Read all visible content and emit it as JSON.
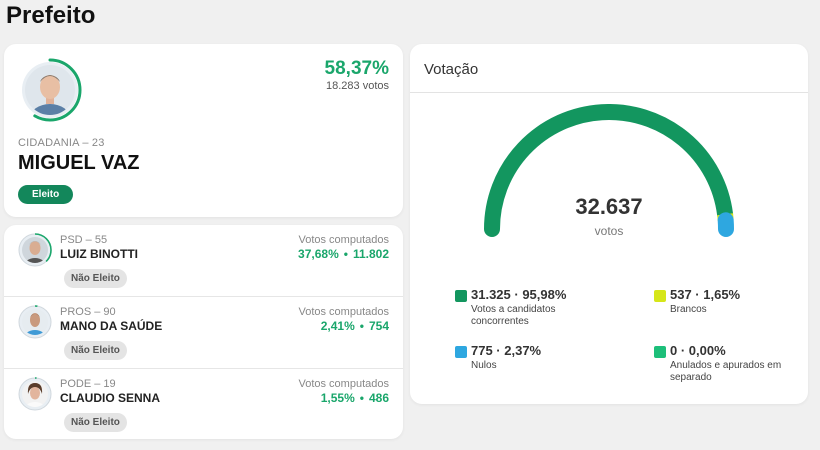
{
  "page_title": "Prefeito",
  "winner": {
    "party": "CIDADANIA – 23",
    "name": "MIGUEL VAZ",
    "percent": "58,37%",
    "votes": "18.283 votos",
    "status": "Eleito",
    "share": 0.5837,
    "ring_color": "#1aa66b"
  },
  "others": [
    {
      "party": "PSD – 55",
      "name": "LUIZ BINOTTI",
      "votes_label": "Votos computados",
      "percent": "37,68%",
      "sep": "•",
      "votes": "11.802",
      "status": "Não Eleito",
      "share": 0.3768
    },
    {
      "party": "PROS – 90",
      "name": "MANO DA SAÚDE",
      "votes_label": "Votos computados",
      "percent": "2,41%",
      "sep": "•",
      "votes": "754",
      "status": "Não Eleito",
      "share": 0.0241
    },
    {
      "party": "PODE – 19",
      "name": "CLAUDIO SENNA",
      "votes_label": "Votos computados",
      "percent": "1,55%",
      "sep": "•",
      "votes": "486",
      "status": "Não Eleito",
      "share": 0.0155
    }
  ],
  "votacao": {
    "title": "Votação",
    "total": "32.637",
    "total_label": "votos",
    "legend": [
      {
        "value": "31.325 · 95,98%",
        "desc": "Votos a candidatos concorrentes",
        "color": "#13965f",
        "share": 0.9598
      },
      {
        "value": "537 · 1,65%",
        "desc": "Brancos",
        "color": "#d6e619",
        "share": 0.0165
      },
      {
        "value": "775 · 2,37%",
        "desc": "Nulos",
        "color": "#2ea7e0",
        "share": 0.0237
      },
      {
        "value": "0 · 0,00%",
        "desc": "Anulados e apurados em separado",
        "color": "#1dbf7a",
        "share": 0.0
      }
    ]
  }
}
